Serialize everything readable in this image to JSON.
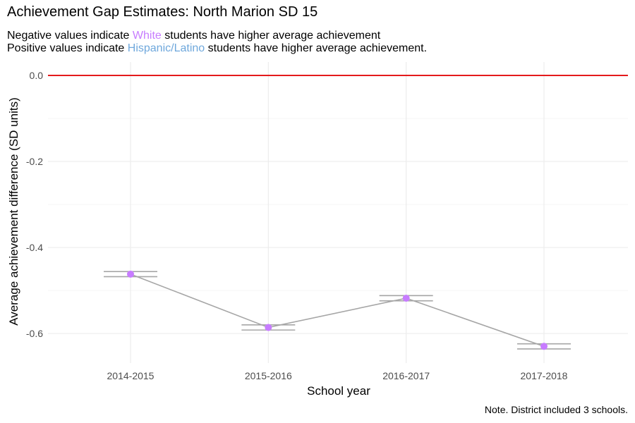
{
  "title": "Achievement Gap Estimates: North Marion SD 15",
  "subtitle": {
    "line1_pre": "Negative values indicate ",
    "line1_highlight": "White",
    "line1_post": " students have higher average achievement",
    "line2_pre": "Positive values indicate ",
    "line2_highlight": "Hispanic/Latino",
    "line2_post": " students have higher average achievement."
  },
  "caption": "Note. District included 3 schools.",
  "colors": {
    "white_group": "#c77cff",
    "hispanic_group": "#6fa8dc",
    "zero_line": "#e41a1c",
    "series_line": "#a6a6a6",
    "point": "#c77cff",
    "gridline": "#ebebeb"
  },
  "chart_data": {
    "type": "line",
    "title": "Achievement Gap Estimates: North Marion SD 15",
    "xlabel": "School year",
    "ylabel": "Average achievement difference (SD units)",
    "categories": [
      "2014-2015",
      "2015-2016",
      "2016-2017",
      "2017-2018"
    ],
    "values": [
      -0.462,
      -0.586,
      -0.518,
      -0.63
    ],
    "error_bars": [
      {
        "lower": -0.468,
        "upper": -0.456
      },
      {
        "lower": -0.592,
        "upper": -0.58
      },
      {
        "lower": -0.524,
        "upper": -0.512
      },
      {
        "lower": -0.636,
        "upper": -0.624
      }
    ],
    "reference_line": 0,
    "ylim": [
      -0.655,
      0.01
    ],
    "yticks": [
      0.0,
      -0.2,
      -0.4,
      -0.6
    ],
    "ytick_labels": [
      "0.0",
      "-0.2",
      "-0.4",
      "-0.6"
    ],
    "grid": true,
    "legend": "none"
  }
}
